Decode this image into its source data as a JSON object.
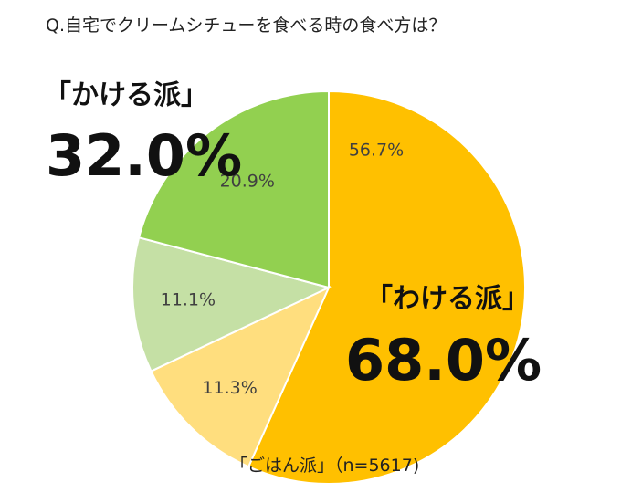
{
  "chart_data": {
    "type": "pie",
    "title": "Q.自宅でクリームシチューを食べる時の食べ方は？",
    "slices": [
      {
        "label": "56.7%",
        "value": 56.7,
        "color": "#FFC000"
      },
      {
        "label": "11.3%",
        "value": 11.3,
        "color": "#FFDE7E"
      },
      {
        "label": "11.1%",
        "value": 11.1,
        "color": "#C5E0A5"
      },
      {
        "label": "20.9%",
        "value": 20.9,
        "color": "#92D050"
      }
    ],
    "groups": [
      {
        "label": "「かける派」",
        "value": "32.0%"
      },
      {
        "label": "「わける派」",
        "value": "68.0%"
      }
    ],
    "footnote": "「ごはん派」（n=5617)"
  }
}
